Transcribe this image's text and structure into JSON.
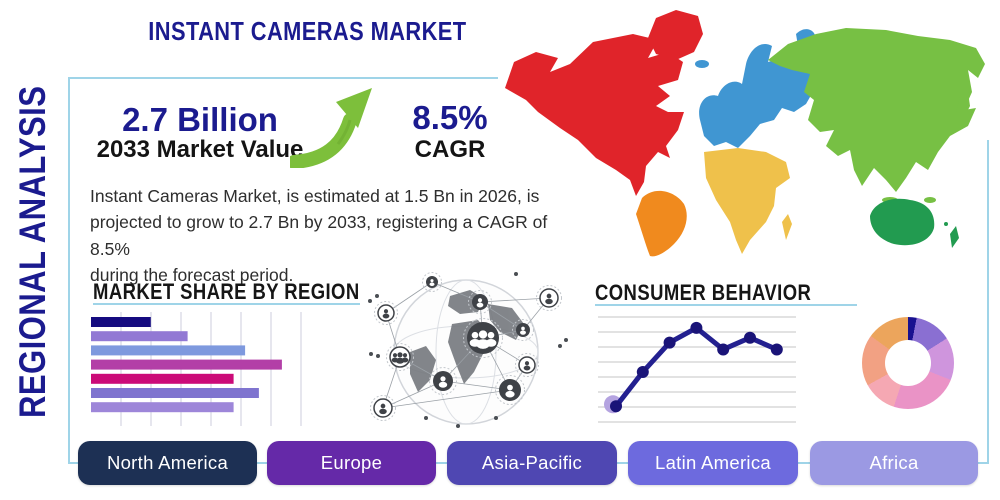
{
  "page": {
    "title": "INSTANT CAMERAS MARKET",
    "side_label": "REGIONAL ANALYSIS"
  },
  "stats": {
    "market_value": "2.7 Billion",
    "market_value_label": "2033 Market Value",
    "cagr_value": "8.5%",
    "cagr_label": "CAGR"
  },
  "description_lines": [
    "Instant Cameras Market, is estimated at 1.5 Bn in 2026, is",
    "projected to grow to 2.7 Bn by 2033, registering a CAGR of 8.5%",
    "during the forecast period."
  ],
  "icons": {
    "growth_arrow": "green-growth-arrow-icon",
    "globe_network": "globe-network-graphic",
    "world_map": "world-map-by-region"
  },
  "colors": {
    "navy": "#1b1b8f",
    "accent_blue": "#9fd4e8",
    "heading_black": "#161616",
    "arrow_green": "#7dbf3b"
  },
  "map_regions": [
    {
      "name": "North America",
      "color": "#e0242a"
    },
    {
      "name": "South America",
      "color": "#f08a1e"
    },
    {
      "name": "Europe",
      "color": "#4096d2"
    },
    {
      "name": "Africa",
      "color": "#efc14b"
    },
    {
      "name": "Asia",
      "color": "#77c044"
    },
    {
      "name": "Oceania",
      "color": "#229b50"
    }
  ],
  "region_buttons": [
    {
      "label": "North America",
      "color": "#1d3054"
    },
    {
      "label": "Europe",
      "color": "#6529a8"
    },
    {
      "label": "Asia-Pacific",
      "color": "#4f47b2"
    },
    {
      "label": "Latin America",
      "color": "#6d6ade"
    },
    {
      "label": "Africa",
      "color": "#9b99e3"
    }
  ],
  "chart_data": [
    {
      "type": "bar",
      "title": "MARKET SHARE BY REGION",
      "orientation": "horizontal",
      "note": "no axis tick labels shown; values estimated as % of plot width",
      "values_pct_of_max_width": [
        26,
        42,
        67,
        83,
        62,
        73,
        62
      ],
      "bar_colors": [
        "#150b80",
        "#9279d4",
        "#7e99de",
        "#b33fa7",
        "#cb0b78",
        "#7f74cf",
        "#9d86d9"
      ],
      "grid": "vertical",
      "xlim": [
        0,
        100
      ]
    },
    {
      "type": "line",
      "title": "CONSUMER BEHAVIOR",
      "note": "no axis tick labels shown; values estimated 0-100 from gridlines",
      "x": [
        1,
        2,
        3,
        4,
        5,
        6,
        7
      ],
      "values": [
        15,
        50,
        80,
        95,
        73,
        85,
        73
      ],
      "line_color": "#232090",
      "dot_color": "#1a1478",
      "first_dot_halo_color": "#b4a3e0",
      "grid": "horizontal",
      "ylim": [
        0,
        100
      ]
    },
    {
      "type": "pie",
      "variant": "donut",
      "title": "",
      "note": "unlabeled donut; slice percents estimated from angles, clockwise from top",
      "values_pct": [
        3,
        13,
        15,
        24,
        12,
        18,
        15
      ],
      "slice_colors": [
        "#191190",
        "#8a6fd2",
        "#cf95dd",
        "#ea93c6",
        "#f5a8b3",
        "#f2a183",
        "#eca55c"
      ]
    }
  ]
}
